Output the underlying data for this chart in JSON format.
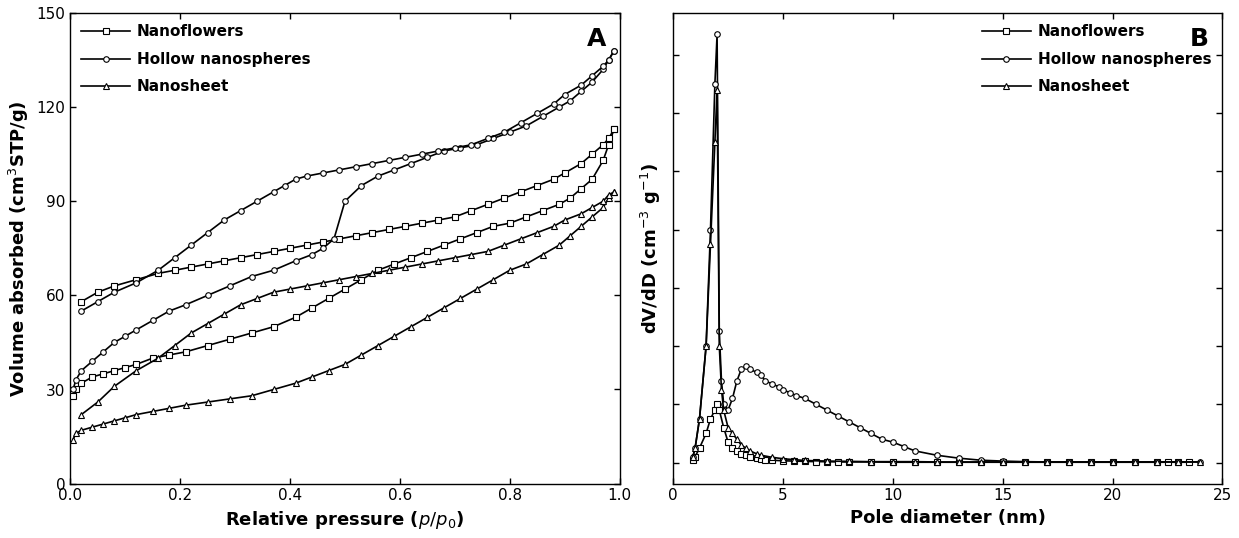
{
  "panel_A": {
    "title": "A",
    "xlabel": "Relative pressure ($p/p_{0}$)",
    "ylabel": "Volume absorbed (cm$^{3}$STP/g)",
    "xlim": [
      0.0,
      1.0
    ],
    "ylim": [
      0,
      150
    ],
    "yticks": [
      0,
      30,
      60,
      90,
      120,
      150
    ],
    "xticks": [
      0.0,
      0.2,
      0.4,
      0.6,
      0.8,
      1.0
    ],
    "series": {
      "nanoflowers": {
        "label": "Nanoflowers",
        "marker": "s",
        "adsorption_x": [
          0.005,
          0.01,
          0.02,
          0.04,
          0.06,
          0.08,
          0.1,
          0.12,
          0.15,
          0.18,
          0.21,
          0.25,
          0.29,
          0.33,
          0.37,
          0.41,
          0.44,
          0.47,
          0.5,
          0.53,
          0.56,
          0.59,
          0.62,
          0.65,
          0.68,
          0.71,
          0.74,
          0.77,
          0.8,
          0.83,
          0.86,
          0.89,
          0.91,
          0.93,
          0.95,
          0.97,
          0.98,
          0.99
        ],
        "adsorption_y": [
          28,
          30,
          32,
          34,
          35,
          36,
          37,
          38,
          40,
          41,
          42,
          44,
          46,
          48,
          50,
          53,
          56,
          59,
          62,
          65,
          68,
          70,
          72,
          74,
          76,
          78,
          80,
          82,
          83,
          85,
          87,
          89,
          91,
          94,
          97,
          103,
          108,
          113
        ],
        "desorption_x": [
          0.99,
          0.98,
          0.97,
          0.95,
          0.93,
          0.9,
          0.88,
          0.85,
          0.82,
          0.79,
          0.76,
          0.73,
          0.7,
          0.67,
          0.64,
          0.61,
          0.58,
          0.55,
          0.52,
          0.49,
          0.46,
          0.43,
          0.4,
          0.37,
          0.34,
          0.31,
          0.28,
          0.25,
          0.22,
          0.19,
          0.16,
          0.12,
          0.08,
          0.05,
          0.02
        ],
        "desorption_y": [
          113,
          110,
          108,
          105,
          102,
          99,
          97,
          95,
          93,
          91,
          89,
          87,
          85,
          84,
          83,
          82,
          81,
          80,
          79,
          78,
          77,
          76,
          75,
          74,
          73,
          72,
          71,
          70,
          69,
          68,
          67,
          65,
          63,
          61,
          58
        ]
      },
      "hollow_nanospheres": {
        "label": "Hollow nanospheres",
        "marker": "o",
        "adsorption_x": [
          0.005,
          0.01,
          0.02,
          0.04,
          0.06,
          0.08,
          0.1,
          0.12,
          0.15,
          0.18,
          0.21,
          0.25,
          0.29,
          0.33,
          0.37,
          0.41,
          0.44,
          0.46,
          0.48,
          0.5,
          0.53,
          0.56,
          0.59,
          0.62,
          0.65,
          0.68,
          0.71,
          0.74,
          0.77,
          0.8,
          0.83,
          0.86,
          0.89,
          0.91,
          0.93,
          0.95,
          0.97,
          0.98,
          0.99
        ],
        "adsorption_y": [
          30,
          33,
          36,
          39,
          42,
          45,
          47,
          49,
          52,
          55,
          57,
          60,
          63,
          66,
          68,
          71,
          73,
          75,
          78,
          90,
          95,
          98,
          100,
          102,
          104,
          106,
          107,
          108,
          110,
          112,
          114,
          117,
          120,
          122,
          125,
          128,
          132,
          135,
          138
        ],
        "desorption_x": [
          0.99,
          0.98,
          0.97,
          0.95,
          0.93,
          0.9,
          0.88,
          0.85,
          0.82,
          0.79,
          0.76,
          0.73,
          0.7,
          0.67,
          0.64,
          0.61,
          0.58,
          0.55,
          0.52,
          0.49,
          0.46,
          0.43,
          0.41,
          0.39,
          0.37,
          0.34,
          0.31,
          0.28,
          0.25,
          0.22,
          0.19,
          0.16,
          0.12,
          0.08,
          0.05,
          0.02
        ],
        "desorption_y": [
          138,
          135,
          133,
          130,
          127,
          124,
          121,
          118,
          115,
          112,
          110,
          108,
          107,
          106,
          105,
          104,
          103,
          102,
          101,
          100,
          99,
          98,
          97,
          95,
          93,
          90,
          87,
          84,
          80,
          76,
          72,
          68,
          64,
          61,
          58,
          55
        ]
      },
      "nanosheet": {
        "label": "Nanosheet",
        "marker": "^",
        "adsorption_x": [
          0.005,
          0.01,
          0.02,
          0.04,
          0.06,
          0.08,
          0.1,
          0.12,
          0.15,
          0.18,
          0.21,
          0.25,
          0.29,
          0.33,
          0.37,
          0.41,
          0.44,
          0.47,
          0.5,
          0.53,
          0.56,
          0.59,
          0.62,
          0.65,
          0.68,
          0.71,
          0.74,
          0.77,
          0.8,
          0.83,
          0.86,
          0.89,
          0.91,
          0.93,
          0.95,
          0.97,
          0.98,
          0.99
        ],
        "adsorption_y": [
          14,
          16,
          17,
          18,
          19,
          20,
          21,
          22,
          23,
          24,
          25,
          26,
          27,
          28,
          30,
          32,
          34,
          36,
          38,
          41,
          44,
          47,
          50,
          53,
          56,
          59,
          62,
          65,
          68,
          70,
          73,
          76,
          79,
          82,
          85,
          88,
          91,
          93
        ],
        "desorption_x": [
          0.99,
          0.98,
          0.97,
          0.95,
          0.93,
          0.9,
          0.88,
          0.85,
          0.82,
          0.79,
          0.76,
          0.73,
          0.7,
          0.67,
          0.64,
          0.61,
          0.58,
          0.55,
          0.52,
          0.49,
          0.46,
          0.43,
          0.4,
          0.37,
          0.34,
          0.31,
          0.28,
          0.25,
          0.22,
          0.19,
          0.16,
          0.12,
          0.08,
          0.05,
          0.02
        ],
        "desorption_y": [
          93,
          92,
          90,
          88,
          86,
          84,
          82,
          80,
          78,
          76,
          74,
          73,
          72,
          71,
          70,
          69,
          68,
          67,
          66,
          65,
          64,
          63,
          62,
          61,
          59,
          57,
          54,
          51,
          48,
          44,
          40,
          36,
          31,
          26,
          22
        ]
      }
    }
  },
  "panel_B": {
    "title": "B",
    "xlabel": "Pole diameter (nm)",
    "ylabel": "dV/dD (cm$^{-3}$ g$^{-1}$)",
    "xlim": [
      0,
      25
    ],
    "ylim_auto": true,
    "xticks": [
      0,
      5,
      10,
      15,
      20,
      25
    ],
    "series": {
      "nanoflowers": {
        "label": "Nanoflowers",
        "marker": "s",
        "x": [
          0.9,
          1.0,
          1.2,
          1.5,
          1.7,
          1.9,
          2.0,
          2.1,
          2.3,
          2.5,
          2.7,
          2.9,
          3.1,
          3.3,
          3.5,
          3.8,
          4.0,
          4.2,
          4.5,
          5.0,
          5.5,
          6.0,
          6.5,
          7.0,
          7.5,
          8.0,
          9.0,
          10.0,
          11.0,
          12.0,
          13.0,
          14.0,
          15.0,
          16.0,
          17.0,
          18.0,
          19.0,
          20.0,
          21.0,
          22.0,
          22.5,
          23.0,
          23.5
        ],
        "y": [
          0.01,
          0.02,
          0.05,
          0.1,
          0.15,
          0.18,
          0.2,
          0.18,
          0.12,
          0.07,
          0.05,
          0.04,
          0.03,
          0.025,
          0.02,
          0.015,
          0.012,
          0.01,
          0.008,
          0.006,
          0.005,
          0.004,
          0.003,
          0.003,
          0.002,
          0.002,
          0.002,
          0.001,
          0.001,
          0.001,
          0.001,
          0.001,
          0.001,
          0.001,
          0.001,
          0.001,
          0.001,
          0.001,
          0.001,
          0.001,
          0.001,
          0.001,
          0.001
        ]
      },
      "hollow_nanospheres": {
        "label": "Hollow nanospheres",
        "marker": "o",
        "x": [
          0.9,
          1.0,
          1.2,
          1.5,
          1.7,
          1.9,
          2.0,
          2.1,
          2.2,
          2.3,
          2.5,
          2.7,
          2.9,
          3.1,
          3.3,
          3.5,
          3.8,
          4.0,
          4.2,
          4.5,
          4.8,
          5.0,
          5.3,
          5.6,
          6.0,
          6.5,
          7.0,
          7.5,
          8.0,
          8.5,
          9.0,
          9.5,
          10.0,
          10.5,
          11.0,
          12.0,
          13.0,
          14.0,
          15.0,
          16.0,
          17.0,
          18.0,
          19.0,
          20.0,
          21.0,
          22.0,
          23.0,
          24.0
        ],
        "y": [
          0.02,
          0.05,
          0.15,
          0.4,
          0.8,
          1.3,
          1.47,
          0.45,
          0.28,
          0.2,
          0.18,
          0.22,
          0.28,
          0.32,
          0.33,
          0.32,
          0.31,
          0.3,
          0.28,
          0.27,
          0.26,
          0.25,
          0.24,
          0.23,
          0.22,
          0.2,
          0.18,
          0.16,
          0.14,
          0.12,
          0.1,
          0.08,
          0.07,
          0.055,
          0.04,
          0.025,
          0.015,
          0.008,
          0.005,
          0.003,
          0.002,
          0.002,
          0.002,
          0.002,
          0.002,
          0.002,
          0.002,
          0.002
        ]
      },
      "nanosheet": {
        "label": "Nanosheet",
        "marker": "^",
        "x": [
          0.9,
          1.0,
          1.2,
          1.5,
          1.7,
          1.9,
          2.0,
          2.1,
          2.2,
          2.3,
          2.5,
          2.7,
          2.9,
          3.1,
          3.3,
          3.5,
          3.8,
          4.0,
          4.5,
          5.0,
          5.5,
          6.0,
          7.0,
          8.0,
          9.0,
          10.0,
          11.0,
          12.0,
          13.0,
          14.0,
          15.0,
          16.0,
          17.0,
          18.0,
          19.0,
          20.0,
          21.0,
          22.0,
          23.0,
          24.0
        ],
        "y": [
          0.02,
          0.05,
          0.15,
          0.4,
          0.75,
          1.1,
          1.28,
          0.4,
          0.25,
          0.18,
          0.12,
          0.1,
          0.08,
          0.06,
          0.05,
          0.04,
          0.03,
          0.025,
          0.018,
          0.013,
          0.01,
          0.007,
          0.005,
          0.004,
          0.003,
          0.003,
          0.003,
          0.002,
          0.002,
          0.002,
          0.002,
          0.002,
          0.002,
          0.002,
          0.002,
          0.002,
          0.002,
          0.002,
          0.002,
          0.002
        ]
      }
    }
  },
  "color": "black",
  "linewidth": 1.2,
  "markersize": 4,
  "legend_fontsize": 10,
  "label_fontsize": 13,
  "tick_fontsize": 11,
  "panel_label_fontsize": 18
}
